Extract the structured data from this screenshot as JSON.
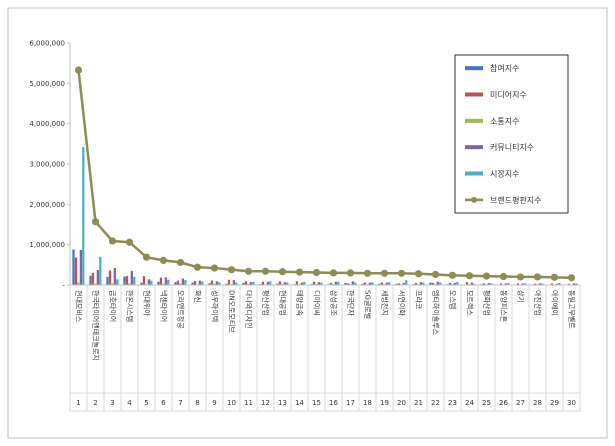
{
  "chart_data": {
    "type": "bar",
    "title": "",
    "xlabel": "",
    "ylabel": "",
    "ylim": [
      0,
      6000000
    ],
    "yticks": [
      0,
      1000000,
      2000000,
      3000000,
      4000000,
      5000000,
      6000000
    ],
    "ytick_labels": [
      "-",
      "1,000,000",
      "2,000,000",
      "3,000,000",
      "4,000,000",
      "5,000,000",
      "6,000,000"
    ],
    "grid": false,
    "legend_position": "right",
    "categories": [
      "현대모비스",
      "한국타이어앤테크놀로지",
      "금호타이어",
      "한온시스템",
      "현대위아",
      "넥센타이어",
      "오리엔트정공",
      "화신",
      "성우하이텍",
      "DN오토모티브",
      "다나와디자인",
      "평산산업",
      "현대공업",
      "태양금속",
      "디아이씨",
      "삼성공조",
      "한국단자",
      "SG글로벌",
      "세방전지",
      "서연이화",
      "프라코",
      "엠티하이솔루스",
      "오스템",
      "모트렉스",
      "평화산업",
      "동양피스톤",
      "상기",
      "아진산업",
      "아이에이",
      "동일고무벨트"
    ],
    "ranks": [
      "1",
      "2",
      "3",
      "4",
      "5",
      "6",
      "7",
      "8",
      "9",
      "10",
      "11",
      "12",
      "13",
      "14",
      "15",
      "16",
      "17",
      "18",
      "19",
      "20",
      "21",
      "22",
      "23",
      "24",
      "25",
      "26",
      "27",
      "28",
      "29",
      "30"
    ],
    "series": [
      {
        "name": "참여지수",
        "color": "#4472c4",
        "kind": "bar",
        "values": [
          880000,
          230000,
          200000,
          210000,
          60000,
          80000,
          70000,
          60000,
          40000,
          30000,
          50000,
          20000,
          30000,
          20000,
          20000,
          20000,
          50000,
          30000,
          30000,
          30000,
          20000,
          60000,
          20000,
          10000,
          20000,
          10000,
          10000,
          10000,
          10000,
          10000
        ]
      },
      {
        "name": "미디어지수",
        "color": "#c0504d",
        "kind": "bar",
        "values": [
          680000,
          300000,
          360000,
          220000,
          220000,
          180000,
          110000,
          100000,
          110000,
          130000,
          90000,
          80000,
          90000,
          90000,
          80000,
          50000,
          40000,
          60000,
          60000,
          40000,
          50000,
          50000,
          50000,
          70000,
          40000,
          40000,
          40000,
          30000,
          40000,
          30000
        ]
      },
      {
        "name": "소통지수",
        "color": "#9bbb59",
        "kind": "bar",
        "values": [
          60000,
          30000,
          40000,
          40000,
          20000,
          30000,
          40000,
          20000,
          30000,
          20000,
          30000,
          20000,
          20000,
          20000,
          20000,
          20000,
          20000,
          20000,
          20000,
          20000,
          20000,
          20000,
          20000,
          20000,
          20000,
          10000,
          10000,
          20000,
          10000,
          10000
        ]
      },
      {
        "name": "커뮤니티지수",
        "color": "#8064a2",
        "kind": "bar",
        "values": [
          870000,
          370000,
          420000,
          350000,
          140000,
          190000,
          160000,
          110000,
          90000,
          120000,
          70000,
          80000,
          70000,
          60000,
          70000,
          80000,
          90000,
          60000,
          60000,
          50000,
          70000,
          80000,
          50000,
          60000,
          50000,
          40000,
          40000,
          40000,
          30000,
          40000
        ]
      },
      {
        "name": "시장지수",
        "color": "#4bacc6",
        "kind": "bar",
        "values": [
          3420000,
          700000,
          140000,
          200000,
          110000,
          130000,
          120000,
          90000,
          70000,
          60000,
          80000,
          90000,
          60000,
          80000,
          60000,
          80000,
          60000,
          70000,
          70000,
          120000,
          60000,
          60000,
          80000,
          30000,
          40000,
          50000,
          40000,
          40000,
          50000,
          40000
        ]
      },
      {
        "name": "브랜드평판지수",
        "color": "#8c8c54",
        "kind": "line",
        "values": [
          5330000,
          1570000,
          1090000,
          1060000,
          690000,
          610000,
          560000,
          440000,
          420000,
          380000,
          340000,
          340000,
          330000,
          320000,
          310000,
          300000,
          300000,
          290000,
          290000,
          290000,
          280000,
          260000,
          240000,
          230000,
          220000,
          210000,
          200000,
          200000,
          190000,
          180000
        ]
      }
    ]
  }
}
